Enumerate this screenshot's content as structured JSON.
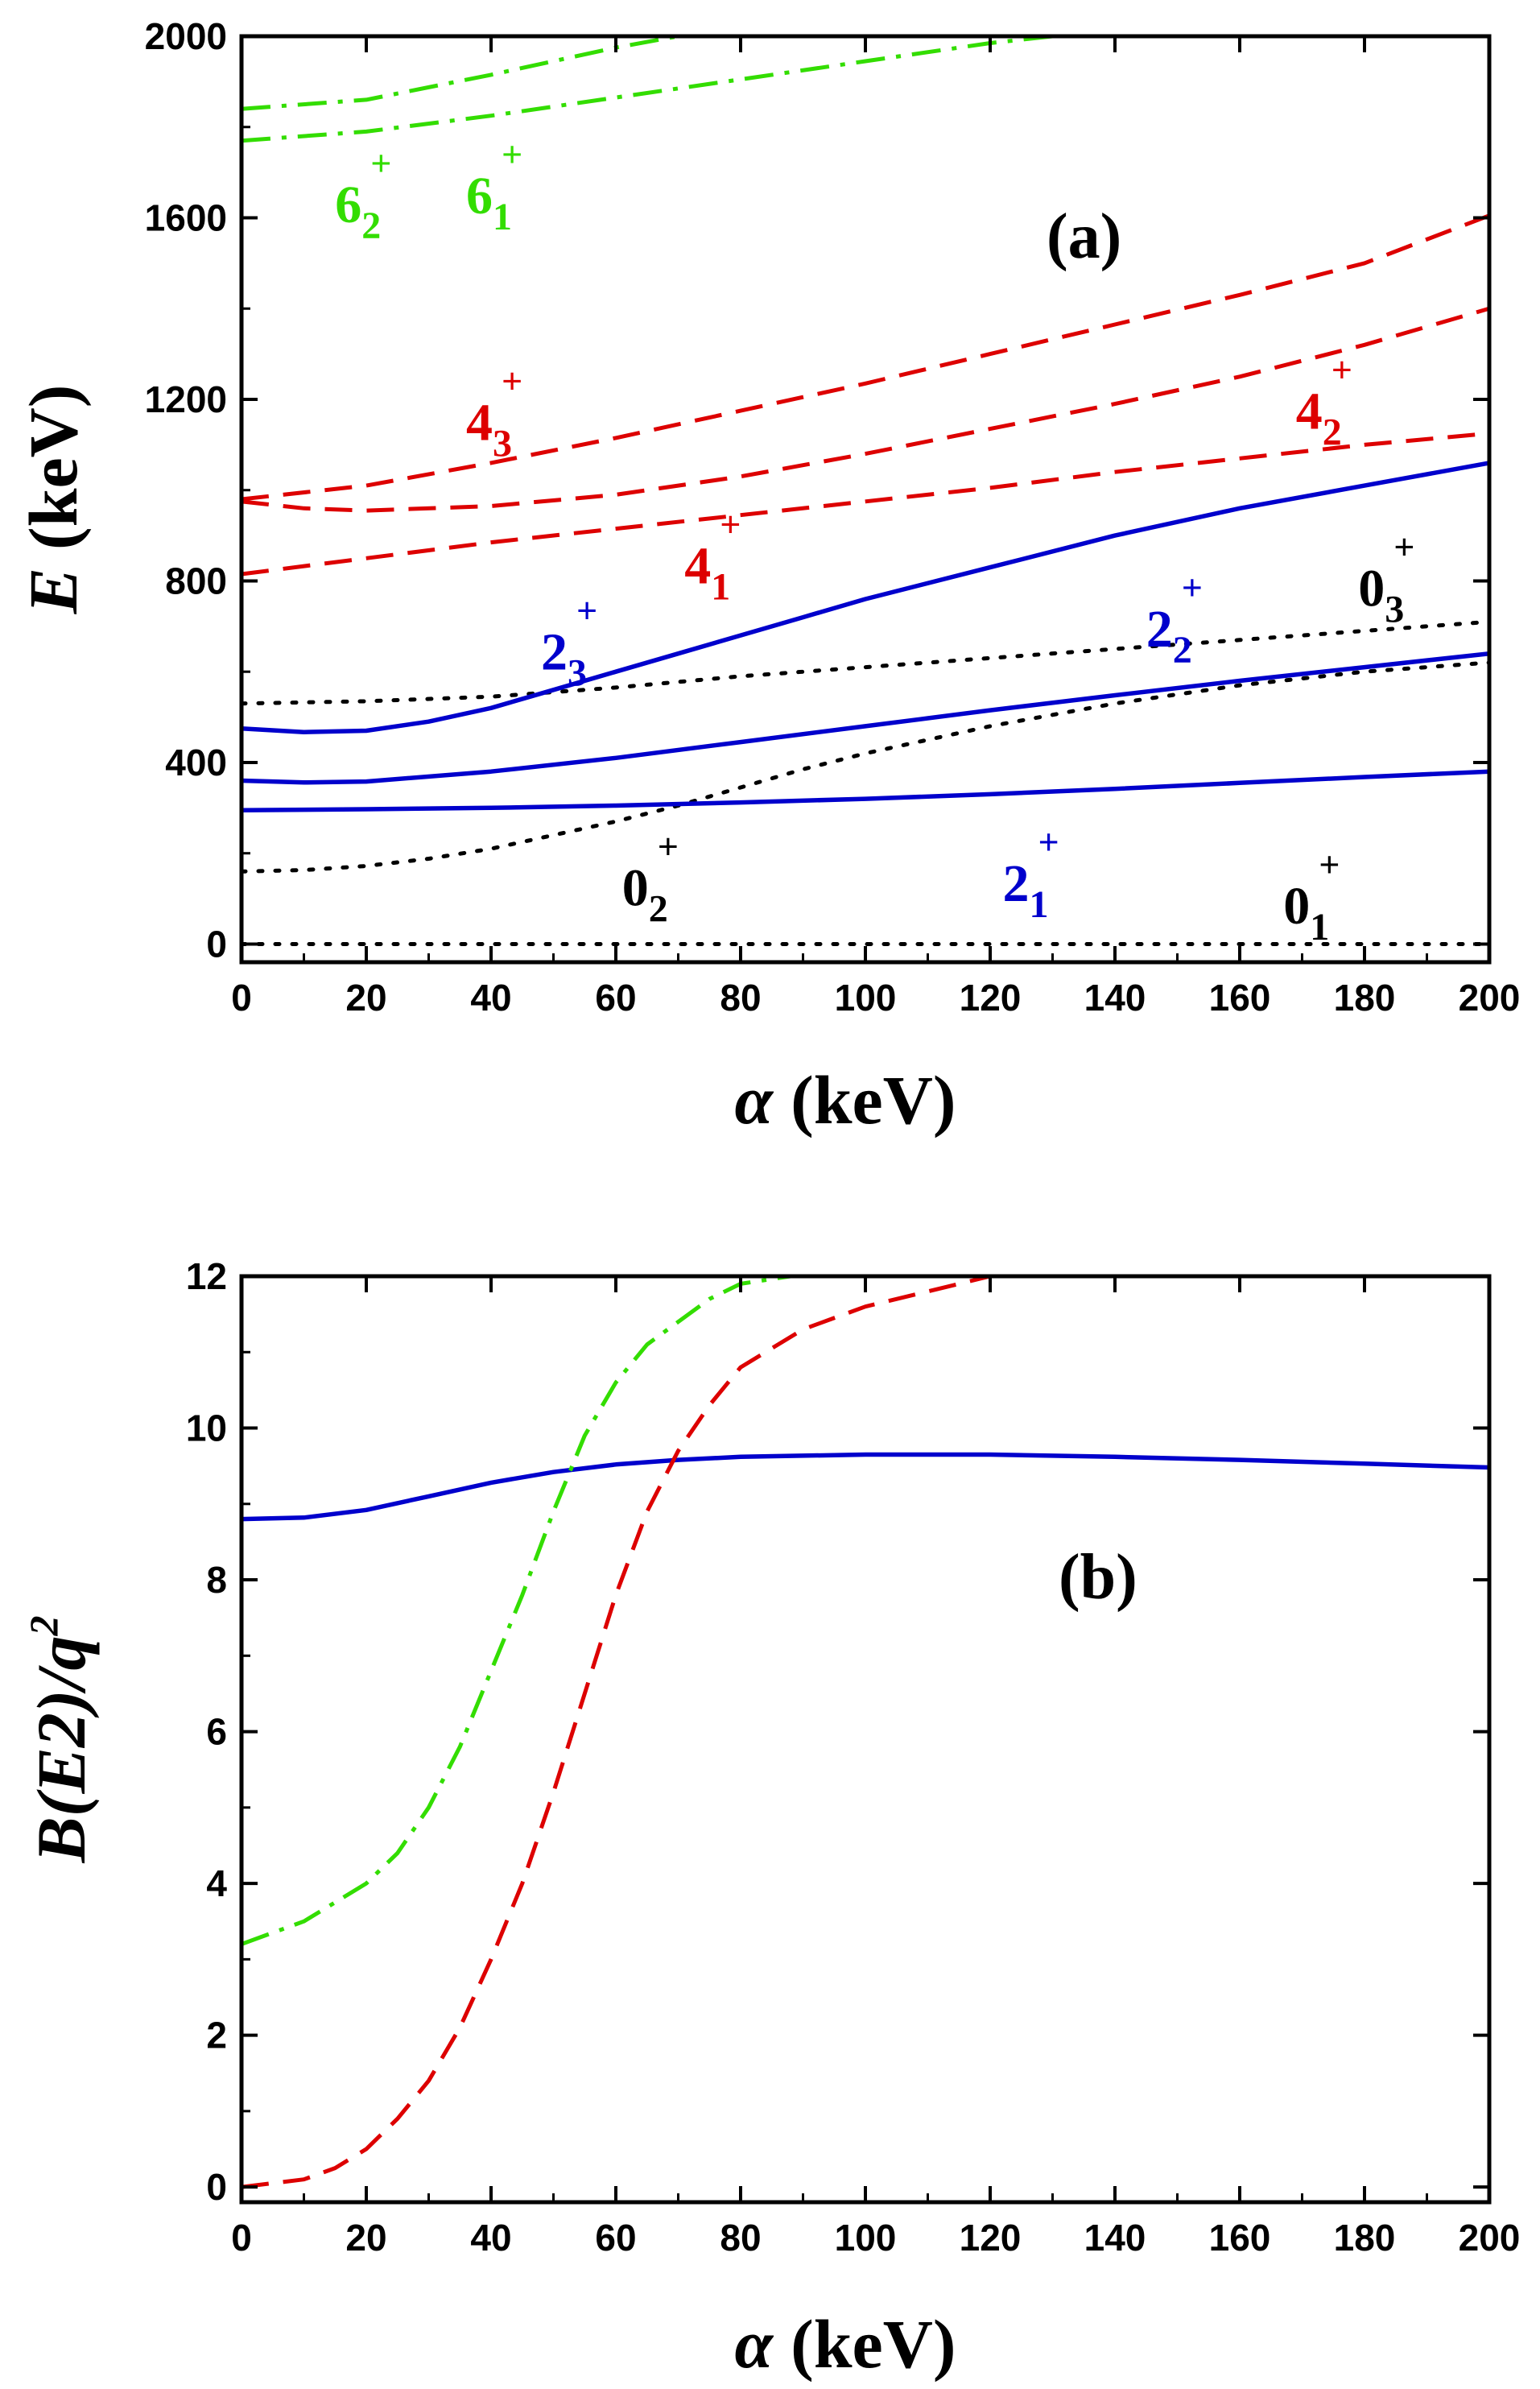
{
  "chart_data": [
    {
      "panel": "(a)",
      "type": "line",
      "xlabel_symbol": "α",
      "xlabel_unit": "(keV)",
      "ylabel_symbol": "E",
      "ylabel_unit": "(keV)",
      "xlim": [
        0,
        200
      ],
      "ylim": [
        -40,
        2000
      ],
      "xticks": [
        0,
        20,
        40,
        60,
        80,
        100,
        120,
        140,
        160,
        180,
        200
      ],
      "yticks": [
        0,
        400,
        800,
        1200,
        1600,
        2000
      ],
      "grid": false,
      "series": [
        {
          "color": "#000000",
          "dash": "dotted",
          "x": [
            0,
            20,
            40,
            60,
            80,
            100,
            120,
            140,
            160,
            180,
            200
          ],
          "y": [
            0,
            0,
            0,
            0,
            0,
            0,
            0,
            0,
            0,
            0,
            0
          ]
        },
        {
          "color": "#000000",
          "dash": "dotted",
          "x": [
            0,
            10,
            20,
            30,
            40,
            50,
            60,
            70,
            80,
            90,
            100,
            120,
            140,
            160,
            180,
            200
          ],
          "y": [
            160,
            163,
            172,
            188,
            210,
            240,
            270,
            305,
            345,
            385,
            420,
            480,
            530,
            570,
            600,
            620
          ]
        },
        {
          "color": "#000000",
          "dash": "dotted",
          "x": [
            0,
            20,
            40,
            60,
            80,
            100,
            120,
            140,
            160,
            180,
            200
          ],
          "y": [
            530,
            535,
            545,
            565,
            590,
            610,
            630,
            650,
            670,
            690,
            710
          ]
        },
        {
          "color": "#0000cc",
          "dash": "solid",
          "x": [
            0,
            20,
            40,
            60,
            80,
            100,
            120,
            140,
            160,
            180,
            200
          ],
          "y": [
            295,
            297,
            300,
            305,
            312,
            320,
            330,
            342,
            355,
            368,
            380
          ]
        },
        {
          "color": "#0000cc",
          "dash": "solid",
          "x": [
            0,
            10,
            20,
            40,
            60,
            80,
            100,
            120,
            140,
            160,
            180,
            200
          ],
          "y": [
            360,
            356,
            358,
            380,
            410,
            445,
            480,
            515,
            548,
            580,
            610,
            640
          ]
        },
        {
          "color": "#0000cc",
          "dash": "solid",
          "x": [
            0,
            10,
            20,
            30,
            40,
            50,
            60,
            70,
            80,
            90,
            100,
            120,
            140,
            160,
            180,
            200
          ],
          "y": [
            475,
            467,
            470,
            490,
            520,
            560,
            600,
            640,
            680,
            720,
            760,
            830,
            900,
            960,
            1010,
            1060
          ]
        },
        {
          "color": "#dd0000",
          "dash": "dashed",
          "x": [
            0,
            20,
            40,
            60,
            80,
            100,
            120,
            140,
            160,
            180,
            200
          ],
          "y": [
            815,
            850,
            885,
            915,
            945,
            975,
            1005,
            1040,
            1070,
            1100,
            1125
          ]
        },
        {
          "color": "#dd0000",
          "dash": "dashed",
          "x": [
            0,
            10,
            20,
            40,
            60,
            80,
            100,
            120,
            140,
            160,
            180,
            200
          ],
          "y": [
            975,
            960,
            955,
            965,
            990,
            1030,
            1080,
            1135,
            1190,
            1250,
            1320,
            1400
          ]
        },
        {
          "color": "#dd0000",
          "dash": "dashed",
          "x": [
            0,
            20,
            40,
            60,
            80,
            100,
            120,
            140,
            160,
            180,
            200
          ],
          "y": [
            980,
            1010,
            1060,
            1115,
            1175,
            1235,
            1300,
            1365,
            1430,
            1500,
            1605
          ]
        },
        {
          "color": "#33dd00",
          "dash": "dashdot",
          "x": [
            0,
            20,
            40,
            60,
            80,
            100,
            120,
            130
          ],
          "y": [
            1770,
            1790,
            1825,
            1865,
            1905,
            1945,
            1985,
            2000
          ]
        },
        {
          "color": "#33dd00",
          "dash": "dashdot",
          "x": [
            0,
            20,
            40,
            60,
            70
          ],
          "y": [
            1840,
            1860,
            1915,
            1975,
            2000
          ]
        }
      ],
      "annotations": [
        {
          "base": "6",
          "sub": "2",
          "sup": "+",
          "color": "#33dd00",
          "x": 15,
          "y": 1590
        },
        {
          "base": "6",
          "sub": "1",
          "sup": "+",
          "color": "#33dd00",
          "x": 36,
          "y": 1610
        },
        {
          "base": "4",
          "sub": "3",
          "sup": "+",
          "color": "#dd0000",
          "x": 36,
          "y": 1110
        },
        {
          "base": "4",
          "sub": "2",
          "sup": "+",
          "color": "#dd0000",
          "x": 169,
          "y": 1135
        },
        {
          "base": "4",
          "sub": "1",
          "sup": "+",
          "color": "#dd0000",
          "x": 71,
          "y": 795
        },
        {
          "base": "2",
          "sub": "3",
          "sup": "+",
          "color": "#0000cc",
          "x": 48,
          "y": 605
        },
        {
          "base": "2",
          "sub": "2",
          "sup": "+",
          "color": "#0000cc",
          "x": 145,
          "y": 655
        },
        {
          "base": "0",
          "sub": "3",
          "sup": "+",
          "color": "#000000",
          "x": 179,
          "y": 745
        },
        {
          "base": "0",
          "sub": "2",
          "sup": "+",
          "color": "#000000",
          "x": 61,
          "y": 85
        },
        {
          "base": "2",
          "sub": "1",
          "sup": "+",
          "color": "#0000cc",
          "x": 122,
          "y": 95
        },
        {
          "base": "0",
          "sub": "1",
          "sup": "+",
          "color": "#000000",
          "x": 167,
          "y": 45
        }
      ]
    },
    {
      "panel": "(b)",
      "type": "line",
      "xlabel_symbol": "α",
      "xlabel_unit": "(keV)",
      "ylabel": "B(E2)/q",
      "ylabel_sup": "2",
      "xlim": [
        0,
        200
      ],
      "ylim": [
        -0.2,
        12
      ],
      "xticks": [
        0,
        20,
        40,
        60,
        80,
        100,
        120,
        140,
        160,
        180,
        200
      ],
      "yticks": [
        0,
        2,
        4,
        6,
        8,
        10,
        12
      ],
      "grid": false,
      "series": [
        {
          "color": "#0000cc",
          "dash": "solid",
          "x": [
            0,
            10,
            20,
            30,
            40,
            50,
            60,
            70,
            80,
            100,
            120,
            140,
            160,
            180,
            200
          ],
          "y": [
            8.8,
            8.82,
            8.92,
            9.1,
            9.28,
            9.42,
            9.52,
            9.58,
            9.62,
            9.65,
            9.65,
            9.62,
            9.58,
            9.53,
            9.48
          ]
        },
        {
          "color": "#33dd00",
          "dash": "dashdot",
          "x": [
            0,
            10,
            20,
            25,
            30,
            35,
            40,
            45,
            50,
            55,
            60,
            65,
            70,
            75,
            80,
            88
          ],
          "y": [
            3.2,
            3.5,
            4.0,
            4.4,
            5.0,
            5.8,
            6.8,
            7.8,
            8.9,
            9.9,
            10.6,
            11.1,
            11.4,
            11.7,
            11.9,
            12.0
          ]
        },
        {
          "color": "#dd0000",
          "dash": "dashed",
          "x": [
            0,
            10,
            15,
            20,
            25,
            30,
            35,
            40,
            45,
            50,
            55,
            60,
            65,
            70,
            75,
            80,
            90,
            100,
            110,
            120
          ],
          "y": [
            0.0,
            0.1,
            0.25,
            0.5,
            0.9,
            1.4,
            2.1,
            3.0,
            4.0,
            5.2,
            6.5,
            7.8,
            8.9,
            9.7,
            10.3,
            10.8,
            11.3,
            11.6,
            11.8,
            12.0
          ]
        }
      ]
    }
  ]
}
